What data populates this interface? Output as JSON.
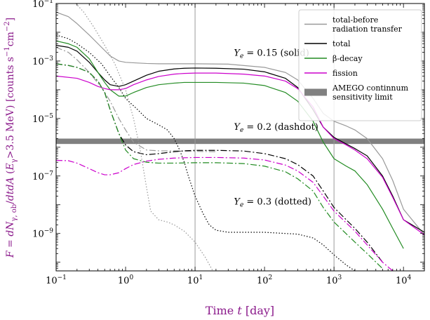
{
  "chart_data": {
    "type": "line",
    "xlabel_prefix": "Time ",
    "xlabel_var": "t",
    "xlabel_unit": " [day]",
    "ylabel": "F = dN_{γ, ob}/dtdA (E_γ>3.5 MeV) [counts s^{-1} cm^{-2}]",
    "x_scale": "log",
    "y_scale": "log",
    "xlim": [
      0.1,
      20000
    ],
    "ylim": [
      5e-11,
      0.1
    ],
    "x_ticks": [
      {
        "value": 0.1,
        "base": "10",
        "exp": "−1"
      },
      {
        "value": 1,
        "base": "10",
        "exp": "0"
      },
      {
        "value": 10,
        "base": "10",
        "exp": "1"
      },
      {
        "value": 100,
        "base": "10",
        "exp": "2"
      },
      {
        "value": 1000,
        "base": "10",
        "exp": "3"
      },
      {
        "value": 10000,
        "base": "10",
        "exp": "4"
      }
    ],
    "y_ticks": [
      {
        "value": 1e-09,
        "base": "10",
        "exp": "−9"
      },
      {
        "value": 1e-07,
        "base": "10",
        "exp": "−7"
      },
      {
        "value": 1e-05,
        "base": "10",
        "exp": "−5"
      },
      {
        "value": 0.001,
        "base": "10",
        "exp": "−3"
      },
      {
        "value": 0.1,
        "base": "10",
        "exp": "−1"
      }
    ],
    "vertical_lines": [
      10,
      1000
    ],
    "sensitivity_band": {
      "y_low": 1.3e-06,
      "y_high": 2e-06,
      "color": "#808080"
    },
    "legend": [
      {
        "label_lines": [
          "total-before",
          "radiation transfer"
        ],
        "color": "#999999"
      },
      {
        "label_lines": [
          "total"
        ],
        "color": "#000000"
      },
      {
        "label_lines": [
          "β-decay"
        ],
        "color": "#228b22"
      },
      {
        "label_lines": [
          "fission"
        ],
        "color": "#cc00cc"
      },
      {
        "label_lines": [
          "AMEGO continnum",
          "sensitivity limit"
        ],
        "color": "#808080",
        "band": true
      }
    ],
    "annotations": [
      {
        "text_prefix": "Y",
        "text_sub": "e",
        "text_suffix": " = 0.15 (solid)",
        "x": 18,
        "y": 0.0015
      },
      {
        "text_prefix": "Y",
        "text_sub": "e",
        "text_suffix": " = 0.2 (dashdot)",
        "x": 18,
        "y": 4e-06
      },
      {
        "text_prefix": "Y",
        "text_sub": "e",
        "text_suffix": " = 0.3 (dotted)",
        "x": 18,
        "y": 1e-08
      }
    ],
    "series": [
      {
        "group": "solid",
        "component": "total-before",
        "color": "#999999",
        "dash": "",
        "x": [
          0.1,
          0.15,
          0.2,
          0.3,
          0.45,
          0.6,
          0.8,
          1.0,
          1.5,
          2,
          3,
          5,
          10,
          30,
          100,
          200,
          300,
          500,
          700,
          1000,
          1500,
          2000,
          3000,
          5000,
          7000,
          10000,
          20000
        ],
        "y": [
          0.05,
          0.035,
          0.02,
          0.008,
          0.003,
          0.0015,
          0.001,
          0.0009,
          0.00085,
          0.00082,
          0.0008,
          0.0008,
          0.0008,
          0.00078,
          0.0006,
          0.0004,
          0.00022,
          5e-05,
          1.5e-05,
          8e-06,
          5.5e-06,
          4e-06,
          2e-06,
          4e-07,
          7e-08,
          7e-09,
          9e-10
        ]
      },
      {
        "group": "solid",
        "component": "total",
        "color": "#000000",
        "dash": "",
        "x": [
          0.1,
          0.15,
          0.2,
          0.3,
          0.4,
          0.5,
          0.6,
          0.8,
          1.0,
          1.3,
          2,
          3,
          5,
          7,
          10,
          20,
          50,
          100,
          200,
          300,
          500,
          700,
          1000,
          1500,
          2000,
          3000,
          5000,
          7000,
          10000,
          20000
        ],
        "y": [
          0.0035,
          0.003,
          0.0022,
          0.0009,
          0.0004,
          0.00022,
          0.00015,
          0.00013,
          0.00015,
          0.0002,
          0.00032,
          0.00044,
          0.00053,
          0.00056,
          0.00057,
          0.00056,
          0.00052,
          0.00042,
          0.00025,
          0.00012,
          2e-05,
          5e-06,
          2.2e-06,
          1.3e-06,
          9e-07,
          5e-07,
          1e-07,
          2e-08,
          3e-09,
          1.1e-09
        ]
      },
      {
        "group": "solid",
        "component": "beta-decay",
        "color": "#228b22",
        "dash": "",
        "x": [
          0.1,
          0.15,
          0.2,
          0.3,
          0.4,
          0.5,
          0.6,
          0.8,
          1.0,
          1.3,
          2,
          3,
          5,
          7,
          10,
          20,
          50,
          100,
          200,
          300,
          500,
          700,
          1000,
          1500,
          2000,
          3000,
          5000,
          7000,
          10000
        ],
        "y": [
          0.005,
          0.004,
          0.003,
          0.0012,
          0.0004,
          0.00018,
          0.0001,
          6e-05,
          6e-05,
          8e-05,
          0.00012,
          0.00015,
          0.00017,
          0.00018,
          0.00018,
          0.00018,
          0.00017,
          0.00014,
          8e-05,
          4e-05,
          8e-06,
          1.5e-06,
          4e-07,
          2.2e-07,
          1.5e-07,
          5e-08,
          7e-09,
          1.5e-09,
          3e-10
        ]
      },
      {
        "group": "solid",
        "component": "fission",
        "color": "#cc00cc",
        "dash": "",
        "x": [
          0.1,
          0.2,
          0.3,
          0.4,
          0.5,
          0.6,
          0.8,
          1.0,
          1.3,
          2,
          3,
          5,
          7,
          10,
          20,
          50,
          100,
          200,
          300,
          500,
          700,
          1000,
          1500,
          2000,
          3000,
          5000,
          7000,
          10000,
          20000
        ],
        "y": [
          0.0003,
          0.00025,
          0.00018,
          0.00013,
          0.00011,
          0.0001,
          0.0001,
          0.00011,
          0.00015,
          0.00022,
          0.00029,
          0.00035,
          0.00037,
          0.00038,
          0.00038,
          0.00035,
          0.0003,
          0.0002,
          0.00011,
          2.5e-05,
          5e-06,
          2e-06,
          1.2e-06,
          8e-07,
          4e-07,
          9e-08,
          1.8e-08,
          3e-09,
          9e-10
        ]
      },
      {
        "group": "dashdot",
        "component": "total-before",
        "color": "#999999",
        "dash": "9,3,2,3",
        "x": [
          0.1,
          0.15,
          0.2,
          0.3,
          0.45,
          0.6,
          0.8,
          1.0,
          1.3,
          2,
          3,
          5,
          10,
          20
        ],
        "y": [
          0.003,
          0.002,
          0.0011,
          0.0004,
          0.00012,
          4e-05,
          1e-05,
          4e-06,
          1.5e-06,
          8e-07,
          7.5e-07,
          7.5e-07,
          7.2e-07,
          7e-07
        ]
      },
      {
        "group": "dashdot",
        "component": "total",
        "color": "#000000",
        "dash": "9,3,2,3",
        "x": [
          0.1,
          0.15,
          0.2,
          0.3,
          0.4,
          0.5,
          0.6,
          0.8,
          1.0,
          1.3,
          2,
          3,
          5,
          7,
          10,
          20,
          50,
          100,
          200,
          300,
          500,
          700,
          1000,
          2000,
          3000,
          5000
        ],
        "y": [
          0.0008,
          0.0007,
          0.0006,
          0.0004,
          0.0002,
          8e-05,
          2e-05,
          3e-06,
          1.2e-06,
          7e-07,
          5.5e-07,
          6e-07,
          7e-07,
          7.5e-07,
          7.8e-07,
          7.8e-07,
          7.4e-07,
          6e-07,
          4e-07,
          2.5e-07,
          1e-07,
          3e-08,
          8e-09,
          1.5e-09,
          5e-10,
          1e-10
        ]
      },
      {
        "group": "dashdot",
        "component": "beta-decay",
        "color": "#228b22",
        "dash": "9,3,2,3",
        "x": [
          0.1,
          0.15,
          0.2,
          0.3,
          0.4,
          0.5,
          0.6,
          0.8,
          1.0,
          1.3,
          2,
          3,
          5,
          10,
          20,
          50,
          100,
          200,
          300,
          500,
          700,
          1000,
          2000,
          3000,
          5000
        ],
        "y": [
          0.0008,
          0.0007,
          0.0006,
          0.0004,
          0.0002,
          8e-05,
          2e-05,
          3e-06,
          8e-07,
          4e-07,
          3e-07,
          2.8e-07,
          2.8e-07,
          2.9e-07,
          2.9e-07,
          2.7e-07,
          2.2e-07,
          1.4e-07,
          8e-08,
          3e-08,
          8e-09,
          2.5e-09,
          5e-10,
          2e-10,
          6e-11
        ]
      },
      {
        "group": "dashdot",
        "component": "fission",
        "color": "#cc00cc",
        "dash": "9,3,2,3",
        "x": [
          0.1,
          0.15,
          0.2,
          0.3,
          0.4,
          0.5,
          0.6,
          0.8,
          1.0,
          1.3,
          2,
          3,
          5,
          7,
          10,
          20,
          50,
          100,
          200,
          300,
          500,
          700,
          1000,
          2000,
          3000,
          5000,
          7000
        ],
        "y": [
          3.5e-07,
          3.4e-07,
          2.8e-07,
          1.8e-07,
          1.3e-07,
          1.1e-07,
          1.1e-07,
          1.3e-07,
          1.8e-07,
          2.5e-07,
          3.3e-07,
          3.8e-07,
          4.2e-07,
          4.3e-07,
          4.4e-07,
          4.4e-07,
          4.2e-07,
          3.6e-07,
          2.4e-07,
          1.5e-07,
          6e-08,
          2e-08,
          6e-09,
          1.2e-09,
          4e-10,
          1e-10,
          5e-11
        ]
      },
      {
        "group": "dotted",
        "component": "total-before",
        "color": "#999999",
        "dash": "1.5,2.5",
        "x": [
          0.18,
          0.25,
          0.35,
          0.5,
          0.7,
          1.0,
          1.3,
          1.6,
          2.0,
          2.3,
          3,
          4,
          5,
          7,
          10,
          14,
          18
        ],
        "y": [
          0.12,
          0.05,
          0.015,
          0.0035,
          0.0008,
          0.0001,
          1e-05,
          1e-06,
          4e-08,
          6e-09,
          3e-09,
          2.5e-09,
          2e-09,
          1.2e-09,
          5e-10,
          1.5e-10,
          5e-11
        ]
      },
      {
        "group": "dotted",
        "component": "total",
        "color": "#000000",
        "dash": "1.5,2.5",
        "x": [
          0.1,
          0.15,
          0.2,
          0.3,
          0.45,
          0.6,
          0.8,
          1.0,
          1.5,
          2,
          3,
          4,
          5,
          6,
          7,
          8,
          10,
          13,
          16,
          20,
          30,
          50,
          100,
          200,
          300,
          500,
          700,
          1000,
          1500,
          2000,
          3000
        ],
        "y": [
          0.008,
          0.006,
          0.004,
          0.002,
          0.0008,
          0.0003,
          0.00012,
          5e-05,
          2e-05,
          1e-05,
          6e-06,
          4e-06,
          2e-06,
          8e-07,
          3e-07,
          1e-07,
          2e-08,
          5e-09,
          2e-09,
          1.3e-09,
          1.1e-09,
          1.1e-09,
          1.1e-09,
          1e-09,
          9.5e-10,
          7e-10,
          4e-10,
          1.8e-10,
          8e-11,
          5e-11,
          3e-11
        ]
      }
    ]
  }
}
